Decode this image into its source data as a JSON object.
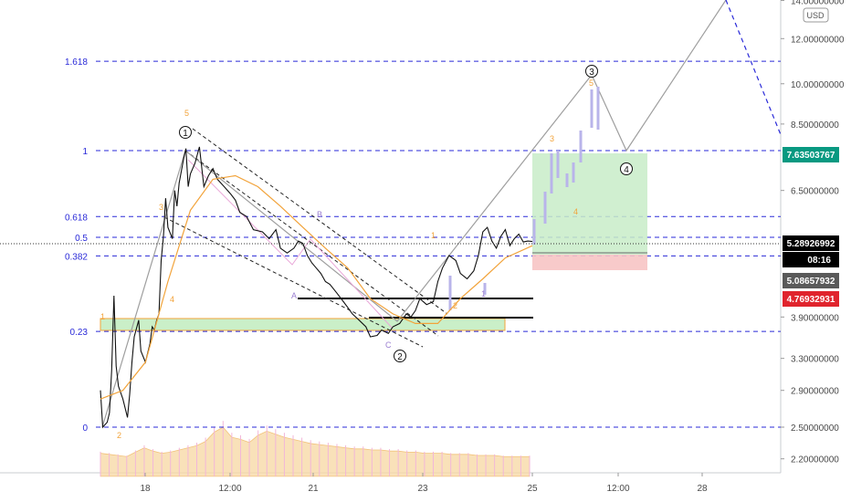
{
  "chart_data": {
    "type": "line",
    "currency": "USD",
    "y_scale": "log",
    "ylim": [
      2.05,
      14.3
    ],
    "x_ticks": [
      "18",
      "12:00",
      "21",
      "23",
      "25",
      "12:00",
      "28"
    ],
    "y_ticks": [
      "14.00000000",
      "12.00000000",
      "10.00000000",
      "8.50000000",
      "6.50000000",
      "3.90000000",
      "3.30000000",
      "2.90000000",
      "2.50000000",
      "2.20000000"
    ],
    "fib_levels": [
      {
        "label": "1.618",
        "value": 10.95
      },
      {
        "label": "1",
        "value": 7.635
      },
      {
        "label": "0.618",
        "value": 5.85
      },
      {
        "label": "0.5",
        "value": 5.38
      },
      {
        "label": "0.382",
        "value": 4.99
      },
      {
        "label": "0.23",
        "value": 3.68
      },
      {
        "label": "0",
        "value": 2.5
      }
    ],
    "price_tags": [
      {
        "label": "7.63503767",
        "color": "#089981"
      },
      {
        "label": "5.28926992",
        "color": "#000000"
      },
      {
        "label": "08:16",
        "color": "#000000"
      },
      {
        "label": "5.08657932",
        "color": "#5a5a5a"
      },
      {
        "label": "4.76932931",
        "color": "#e0242d"
      }
    ],
    "series": [
      {
        "name": "",
        "x": [
          0,
          1,
          3,
          4,
          5,
          6,
          7,
          8,
          10,
          12,
          13,
          14,
          15,
          17,
          18,
          20,
          22,
          23,
          24,
          25,
          26,
          27,
          28,
          29,
          30,
          32,
          33,
          34,
          35,
          37,
          38,
          39,
          40,
          42,
          44,
          46,
          48,
          50,
          52,
          55,
          58,
          60,
          62,
          65,
          68,
          72,
          75,
          78,
          80,
          83,
          86,
          88,
          90,
          92,
          94,
          96,
          98,
          100,
          102,
          105,
          108,
          110,
          112,
          115,
          118,
          120,
          123,
          125,
          128,
          130,
          133,
          136,
          138,
          140,
          142,
          145,
          148,
          150,
          152,
          155,
          158,
          160,
          163,
          166,
          168,
          170,
          172,
          174,
          176,
          178,
          180,
          182,
          184,
          186,
          188,
          190,
          192
        ],
        "values": [
          2.9,
          2.5,
          2.55,
          2.65,
          3.15,
          4.25,
          3.2,
          2.95,
          2.8,
          2.6,
          2.85,
          3.25,
          3.6,
          3.85,
          3.4,
          3.25,
          3.5,
          3.75,
          3.7,
          3.85,
          3.95,
          4.9,
          5.4,
          6.3,
          5.6,
          5.35,
          6.5,
          6.1,
          6.7,
          7.4,
          7.7,
          6.6,
          6.95,
          7.25,
          7.75,
          6.6,
          6.9,
          7.1,
          6.8,
          6.6,
          6.4,
          6.25,
          5.95,
          5.85,
          5.55,
          5.5,
          5.35,
          5.55,
          5.15,
          5.05,
          5.15,
          5.3,
          5.25,
          5.0,
          4.85,
          4.75,
          4.65,
          4.5,
          4.45,
          4.3,
          4.15,
          4.05,
          3.95,
          3.85,
          3.75,
          3.6,
          3.62,
          3.7,
          3.65,
          3.75,
          3.8,
          3.95,
          3.9,
          4.0,
          4.2,
          4.1,
          4.15,
          4.5,
          4.75,
          5.0,
          4.9,
          4.65,
          4.55,
          4.7,
          5.0,
          5.5,
          5.6,
          5.3,
          5.15,
          5.4,
          5.55,
          5.2,
          5.35,
          5.45,
          5.28,
          5.3,
          5.29
        ]
      },
      {
        "name": "",
        "x": [
          0,
          10,
          20,
          30,
          40,
          50,
          60,
          70,
          80,
          90,
          100,
          110,
          120,
          130,
          140,
          150,
          160,
          170,
          180,
          192
        ],
        "values": [
          2.8,
          2.9,
          3.25,
          4.5,
          6.0,
          6.8,
          6.9,
          6.6,
          6.1,
          5.6,
          5.15,
          4.75,
          4.2,
          3.95,
          3.8,
          3.8,
          4.2,
          4.55,
          4.95,
          5.2
        ]
      }
    ],
    "volume": [
      2.25,
      2.24,
      2.23,
      2.22,
      2.26,
      2.3,
      2.27,
      2.25,
      2.26,
      2.28,
      2.3,
      2.32,
      2.36,
      2.45,
      2.5,
      2.4,
      2.38,
      2.35,
      2.42,
      2.46,
      2.43,
      2.4,
      2.38,
      2.36,
      2.34,
      2.33,
      2.32,
      2.31,
      2.3,
      2.29,
      2.29,
      2.28,
      2.28,
      2.27,
      2.27,
      2.26,
      2.26,
      2.25,
      2.25,
      2.25,
      2.24,
      2.24,
      2.24,
      2.23,
      2.23,
      2.23,
      2.22,
      2.22,
      2.22,
      2.22
    ]
  },
  "annotations": {
    "wave_numbers": [
      "1",
      "2",
      "3",
      "4",
      "5"
    ],
    "wave_circles": [
      "1",
      "2",
      "3",
      "4"
    ],
    "correction_letters": [
      "A",
      "B",
      "C"
    ],
    "secondary_numbers": [
      "1",
      "2",
      "3",
      "4",
      "5"
    ],
    "extra_small": [
      "1"
    ]
  }
}
